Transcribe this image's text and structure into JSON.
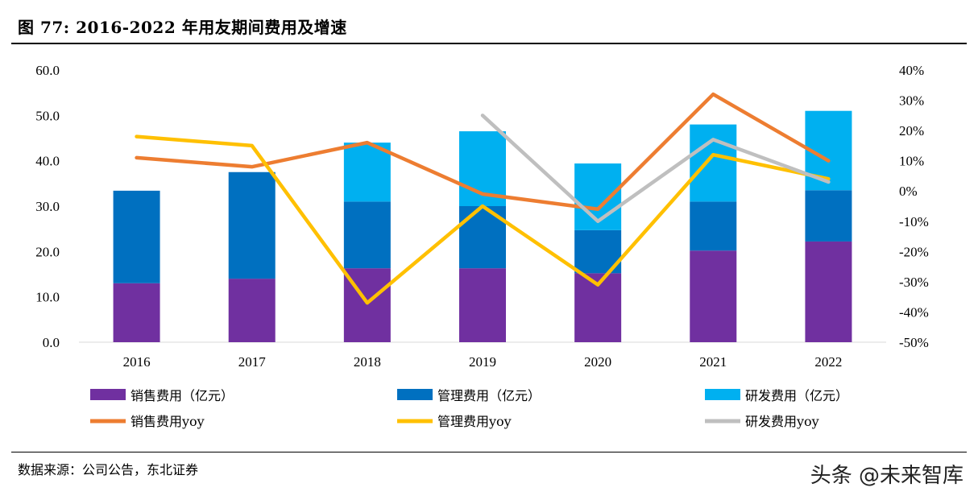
{
  "header": {
    "title": "图  77:  2016-2022 年用友期间费用及增速"
  },
  "footer": {
    "source": "数据来源：公司公告，东北证券",
    "watermark": "头条 @未来智库"
  },
  "colors": {
    "sales_bar": "#7030A0",
    "admin_bar": "#0070C0",
    "rd_bar": "#00B0F0",
    "sales_line": "#ED7D31",
    "admin_line": "#FFC000",
    "rd_line": "#BFBFBF"
  },
  "chart_data": {
    "type": "bar",
    "categories": [
      "2016",
      "2017",
      "2018",
      "2019",
      "2020",
      "2021",
      "2022"
    ],
    "y_left": {
      "ylim": [
        0,
        60
      ],
      "ticks": [
        "0.0",
        "10.0",
        "20.0",
        "30.0",
        "40.0",
        "50.0",
        "60.0"
      ]
    },
    "y_right": {
      "ylim": [
        -50,
        40
      ],
      "ticks": [
        "-50%",
        "-40%",
        "-30%",
        "-20%",
        "-10%",
        "0%",
        "10%",
        "20%",
        "30%",
        "40%"
      ]
    },
    "bar_series": [
      {
        "name": "销售费用（亿元）",
        "values": [
          13.0,
          14.0,
          16.3,
          16.3,
          15.2,
          20.2,
          22.2
        ]
      },
      {
        "name": "管理费用（亿元）",
        "values": [
          20.4,
          23.5,
          14.7,
          13.7,
          9.5,
          10.8,
          11.3
        ]
      },
      {
        "name": "研发费用（亿元）",
        "values": [
          0,
          0,
          13.0,
          16.5,
          14.7,
          17.0,
          17.5
        ]
      }
    ],
    "line_series": [
      {
        "name": "销售费用yoy",
        "values": [
          11,
          8,
          16,
          -1,
          -6,
          32,
          10
        ]
      },
      {
        "name": "管理费用yoy",
        "values": [
          18,
          15,
          -37,
          -5,
          -31,
          12,
          4
        ]
      },
      {
        "name": "研发费用yoy",
        "values": [
          null,
          null,
          null,
          25,
          -10,
          17,
          3
        ]
      }
    ],
    "stacked": true,
    "grid": false,
    "legend_position": "bottom"
  }
}
